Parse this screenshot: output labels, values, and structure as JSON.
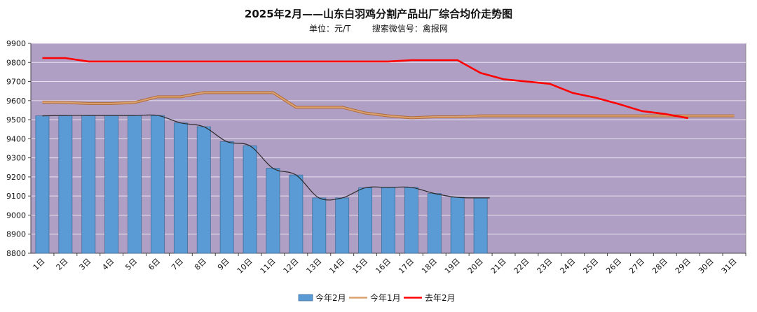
{
  "chart_data": {
    "type": "bar",
    "title": "2025年2月——山东白羽鸡分割产品出厂综合均价走势图",
    "subtitle": "单位：元/T        搜索微信号：禽报网",
    "categories": [
      "1日",
      "2日",
      "3日",
      "4日",
      "5日",
      "6日",
      "7日",
      "8日",
      "9日",
      "10日",
      "11日",
      "12日",
      "13日",
      "14日",
      "15日",
      "16日",
      "17日",
      "18日",
      "19日",
      "20日",
      "21日",
      "22日",
      "23日",
      "24日",
      "25日",
      "26日",
      "27日",
      "28日",
      "29日",
      "30日",
      "31日"
    ],
    "yticks": [
      "8800",
      "8900",
      "9000",
      "9100",
      "9200",
      "9300",
      "9400",
      "9500",
      "9600",
      "9700",
      "9800",
      "9900"
    ],
    "ylim": [
      8800,
      9900
    ],
    "series": [
      {
        "name": "今年2月",
        "type": "bar",
        "color": "#5b9bd5",
        "values": [
          9520,
          9522,
          9522,
          9522,
          9522,
          9522,
          9483,
          9463,
          9385,
          9363,
          9245,
          9210,
          9090,
          9090,
          9143,
          9145,
          9145,
          9113,
          9093,
          9090,
          null,
          null,
          null,
          null,
          null,
          null,
          null,
          null,
          null,
          null,
          null
        ]
      },
      {
        "name": "今年1月",
        "type": "line",
        "color": "#d9a26e",
        "values": [
          9592,
          9590,
          9585,
          9585,
          9590,
          9620,
          9620,
          9642,
          9642,
          9642,
          9642,
          9565,
          9565,
          9565,
          9535,
          9520,
          9510,
          9515,
          9515,
          9520,
          9520,
          9520,
          9520,
          9520,
          9520,
          9520,
          9520,
          9520,
          9520,
          9520,
          9520
        ]
      },
      {
        "name": "去年2月",
        "type": "line",
        "color": "#ff0000",
        "values": [
          9823,
          9823,
          9805,
          9805,
          9805,
          9805,
          9805,
          9805,
          9805,
          9805,
          9805,
          9805,
          9805,
          9805,
          9805,
          9805,
          9812,
          9812,
          9812,
          9745,
          9712,
          9700,
          9688,
          9640,
          9615,
          9582,
          9545,
          9530,
          9508,
          null,
          null
        ]
      }
    ],
    "trendline_color": "#2a2a2a",
    "plot_background": "#b09fc5",
    "gridlines": true,
    "legend_position": "bottom"
  }
}
